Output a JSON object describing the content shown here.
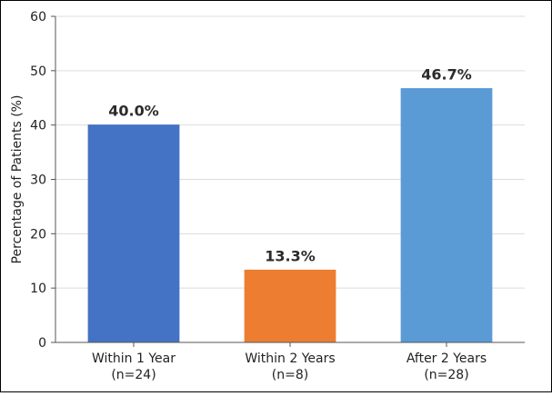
{
  "chart_data": {
    "type": "bar",
    "title": "",
    "xlabel": "",
    "ylabel": "Percentage of Patients (%)",
    "ylim": [
      0,
      60
    ],
    "yticks": [
      0,
      10,
      20,
      30,
      40,
      50,
      60
    ],
    "grid": true,
    "categories": [
      {
        "line1": "Within 1 Year",
        "line2": "(n=24)"
      },
      {
        "line1": "Within 2 Years",
        "line2": "(n=8)"
      },
      {
        "line1": "After 2 Years",
        "line2": "(n=28)"
      }
    ],
    "values": [
      40.0,
      13.3,
      46.7
    ],
    "data_labels": [
      "40.0%",
      "13.3%",
      "46.7%"
    ],
    "colors": [
      "#4472c4",
      "#ed7d31",
      "#5b9bd5"
    ]
  }
}
